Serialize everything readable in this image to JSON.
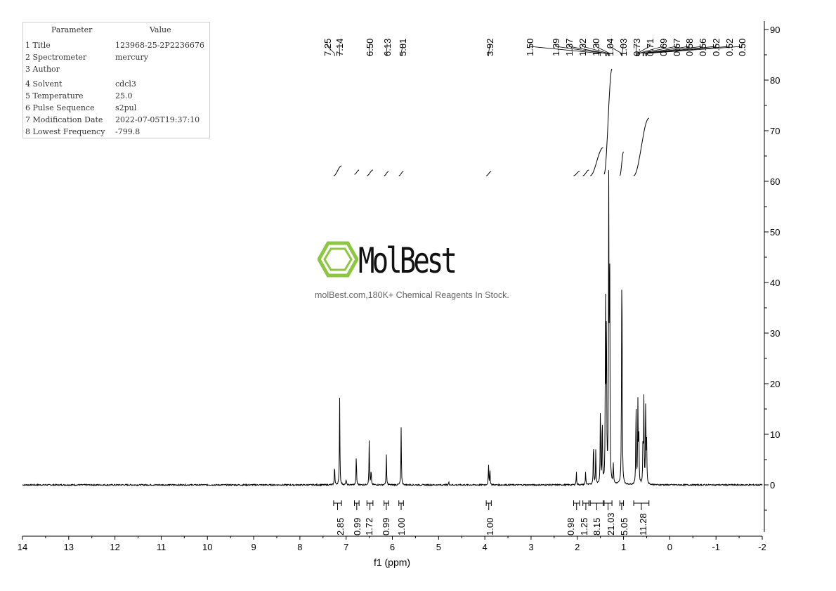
{
  "parameters": {
    "header": [
      "Parameter",
      "Value"
    ],
    "rows": [
      {
        "label": "1 Title",
        "value": "123968-25-2P2236676"
      },
      {
        "label": "2 Spectrometer",
        "value": "mercury"
      },
      {
        "label": "3 Author",
        "value": ""
      },
      {
        "label": "4 Solvent",
        "value": "cdcl3"
      },
      {
        "label": "5 Temperature",
        "value": "25.0"
      },
      {
        "label": "6 Pulse Sequence",
        "value": "s2pul"
      },
      {
        "label": "7 Modification Date",
        "value": "2022-07-05T19:37:10"
      },
      {
        "label": "8 Lowest Frequency",
        "value": "-799.8"
      }
    ]
  },
  "watermark": {
    "brand": "MolBest",
    "tagline": "molBest.com,180K+ Chemical Reagents In Stock.",
    "color": "#8dc63f"
  },
  "chart_data": {
    "type": "line",
    "xlabel": "f1 (ppm)",
    "ylabel": "",
    "xlim": [
      14,
      -2
    ],
    "ylim": [
      -10,
      90
    ],
    "x_ticks": [
      14,
      13,
      12,
      11,
      10,
      9,
      8,
      7,
      6,
      5,
      4,
      3,
      2,
      1,
      0,
      -1,
      -2
    ],
    "y_ticks": [
      0,
      10,
      20,
      30,
      40,
      50,
      60,
      70,
      80,
      90
    ],
    "y_axis_side": "right",
    "line_color": "#000000",
    "peaks": [
      {
        "ppm": 7.25,
        "height": 4.2
      },
      {
        "ppm": 7.14,
        "height": 17.3
      },
      {
        "ppm": 7.0,
        "height": 1.2
      },
      {
        "ppm": 6.78,
        "height": 6.0
      },
      {
        "ppm": 6.5,
        "height": 9.2
      },
      {
        "ppm": 6.46,
        "height": 3.0
      },
      {
        "ppm": 6.13,
        "height": 6.0
      },
      {
        "ppm": 5.81,
        "height": 11.3
      },
      {
        "ppm": 4.78,
        "height": 0.6
      },
      {
        "ppm": 3.92,
        "height": 4.0
      },
      {
        "ppm": 3.89,
        "height": 3.0
      },
      {
        "ppm": 2.02,
        "height": 2.5
      },
      {
        "ppm": 1.82,
        "height": 2.6
      },
      {
        "ppm": 1.65,
        "height": 9.0
      },
      {
        "ppm": 1.6,
        "height": 7.0
      },
      {
        "ppm": 1.5,
        "height": 15.8
      },
      {
        "ppm": 1.46,
        "height": 14.0
      },
      {
        "ppm": 1.39,
        "height": 36.0
      },
      {
        "ppm": 1.37,
        "height": 35.0
      },
      {
        "ppm": 1.32,
        "height": 57.5
      },
      {
        "ppm": 1.3,
        "height": 48.0
      },
      {
        "ppm": 1.22,
        "height": 4.0
      },
      {
        "ppm": 1.04,
        "height": 32.0
      },
      {
        "ppm": 1.03,
        "height": 24.0
      },
      {
        "ppm": 0.73,
        "height": 17.0
      },
      {
        "ppm": 0.69,
        "height": 16.0
      },
      {
        "ppm": 0.67,
        "height": 12.0
      },
      {
        "ppm": 0.58,
        "height": 9.0
      },
      {
        "ppm": 0.56,
        "height": 16.5
      },
      {
        "ppm": 0.52,
        "height": 17.2
      },
      {
        "ppm": 0.5,
        "height": 8.0
      }
    ],
    "peak_labels": [
      "7.25",
      "7.14",
      "6.50",
      "6.13",
      "5.81",
      "3.92",
      "1.50",
      "1.39",
      "1.37",
      "1.32",
      "1.30",
      "1.04",
      "1.03",
      "0.73",
      "0.71",
      "0.69",
      "0.67",
      "0.58",
      "0.56",
      "0.52",
      "0.52",
      "0.50"
    ],
    "integrals": [
      {
        "from": 7.27,
        "to": 7.1,
        "value": "2.85"
      },
      {
        "from": 6.82,
        "to": 6.72,
        "value": "0.99"
      },
      {
        "from": 6.55,
        "to": 6.42,
        "value": "1.72"
      },
      {
        "from": 6.18,
        "to": 6.08,
        "value": "0.99"
      },
      {
        "from": 5.86,
        "to": 5.76,
        "value": "1.00"
      },
      {
        "from": 3.97,
        "to": 3.86,
        "value": "1.00"
      },
      {
        "from": 2.08,
        "to": 1.95,
        "value": "0.98"
      },
      {
        "from": 1.88,
        "to": 1.75,
        "value": "1.25"
      },
      {
        "from": 1.72,
        "to": 1.44,
        "value": "8.15"
      },
      {
        "from": 1.42,
        "to": 1.25,
        "value": "21.03"
      },
      {
        "from": 1.08,
        "to": 1.0,
        "value": "5.05"
      },
      {
        "from": 0.78,
        "to": 0.45,
        "value": "11.28"
      }
    ]
  }
}
